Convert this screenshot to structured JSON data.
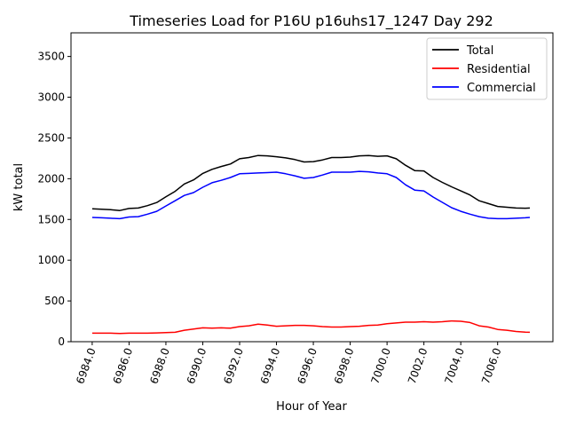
{
  "chart_data": {
    "type": "line",
    "title": "Timeseries Load for P16U p16uhs17_1247  Day 292",
    "xlabel": "Hour of Year",
    "ylabel": "kW total",
    "xlim": [
      6982.85,
      7009.0
    ],
    "ylim": [
      0,
      3790
    ],
    "grid": false,
    "legend_position": "top-right",
    "xticks": [
      "6984.0",
      "6986.0",
      "6988.0",
      "6990.0",
      "6992.0",
      "6994.0",
      "6996.0",
      "6998.0",
      "7000.0",
      "7002.0",
      "7004.0",
      "7006.0"
    ],
    "xtick_values": [
      6984,
      6986,
      6988,
      6990,
      6992,
      6994,
      6996,
      6998,
      7000,
      7002,
      7004,
      7006
    ],
    "yticks": [
      "0",
      "500",
      "1000",
      "1500",
      "2000",
      "2500",
      "3000",
      "3500"
    ],
    "ytick_values": [
      0,
      500,
      1000,
      1500,
      2000,
      2500,
      3000,
      3500
    ],
    "x": [
      6984,
      6984.5,
      6985,
      6985.5,
      6986,
      6986.5,
      6987,
      6987.5,
      6988,
      6988.5,
      6989,
      6989.5,
      6990,
      6990.5,
      6991,
      6991.5,
      6992,
      6992.5,
      6993,
      6993.5,
      6994,
      6994.5,
      6995,
      6995.5,
      6996,
      6996.5,
      6997,
      6997.5,
      6998,
      6998.5,
      6999,
      6999.5,
      7000,
      7000.5,
      7001,
      7001.5,
      7002,
      7002.5,
      7003,
      7003.5,
      7004,
      7004.5,
      7005,
      7005.5,
      7006,
      7006.5,
      7007,
      7007.5,
      7007.75
    ],
    "series": [
      {
        "name": "Total",
        "color": "#000000",
        "values": [
          1630,
          1625,
          1620,
          1610,
          1635,
          1640,
          1670,
          1708,
          1777,
          1845,
          1935,
          1985,
          2065,
          2115,
          2150,
          2180,
          2245,
          2260,
          2285,
          2280,
          2270,
          2255,
          2235,
          2205,
          2210,
          2230,
          2260,
          2260,
          2265,
          2280,
          2285,
          2275,
          2280,
          2245,
          2165,
          2100,
          2095,
          2015,
          1955,
          1900,
          1850,
          1800,
          1730,
          1695,
          1660,
          1650,
          1640,
          1638,
          1640
        ]
      },
      {
        "name": "Residential",
        "color": "#ff0000",
        "values": [
          105,
          105,
          105,
          100,
          105,
          105,
          105,
          108,
          112,
          115,
          140,
          155,
          170,
          165,
          170,
          165,
          185,
          195,
          215,
          205,
          190,
          195,
          200,
          200,
          195,
          185,
          180,
          180,
          185,
          190,
          200,
          205,
          220,
          230,
          240,
          240,
          245,
          240,
          245,
          255,
          250,
          235,
          195,
          180,
          150,
          140,
          125,
          118,
          115
        ]
      },
      {
        "name": "Commercial",
        "color": "#0000ff",
        "values": [
          1525,
          1520,
          1515,
          1510,
          1530,
          1535,
          1565,
          1600,
          1665,
          1730,
          1795,
          1830,
          1895,
          1950,
          1980,
          2015,
          2060,
          2065,
          2070,
          2075,
          2080,
          2060,
          2035,
          2005,
          2015,
          2045,
          2080,
          2080,
          2080,
          2090,
          2085,
          2070,
          2060,
          2015,
          1925,
          1860,
          1850,
          1775,
          1710,
          1645,
          1600,
          1565,
          1535,
          1515,
          1510,
          1510,
          1515,
          1520,
          1525
        ]
      }
    ]
  }
}
